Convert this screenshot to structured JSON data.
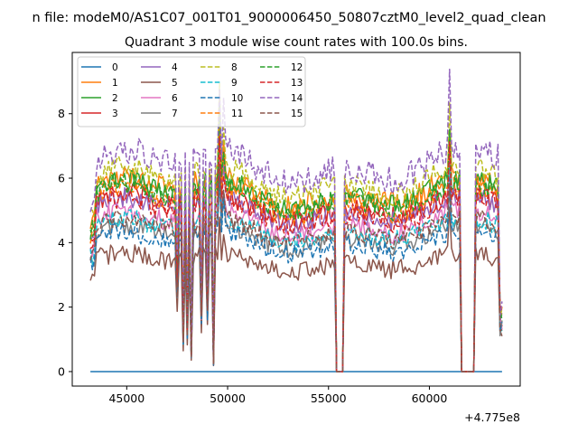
{
  "figure": {
    "suptitle": "n file: modeM0/AS1C07_001T01_9000006450_50807cztM0_level2_quad_clean"
  },
  "chart_data": {
    "type": "line",
    "title": "Quadrant 3 module wise count rates with 100.0s bins.",
    "xlabel": "",
    "ylabel": "",
    "x_offset_label": "+4.775e8",
    "xlim": [
      42300,
      64500
    ],
    "ylim": [
      -0.45,
      9.9
    ],
    "xticks": [
      45000,
      50000,
      55000,
      60000
    ],
    "xtick_labels": [
      "45000",
      "50000",
      "55000",
      "60000"
    ],
    "yticks": [
      0,
      2,
      4,
      6,
      8
    ],
    "ytick_labels": [
      "0",
      "2",
      "4",
      "6",
      "8"
    ],
    "grid": false,
    "legend_placement": "top-left",
    "legend_columns": 4,
    "x_range": [
      43200,
      63600
    ],
    "x_step": 100,
    "gaps": [
      {
        "from": 55400,
        "to": 55700
      },
      {
        "from": 61600,
        "to": 62200
      }
    ],
    "dips": [
      {
        "center": 47500,
        "depth": 0.45
      },
      {
        "center": 47800,
        "depth": 0.8
      },
      {
        "center": 48000,
        "depth": 0.75
      },
      {
        "center": 48200,
        "depth": 0.9
      },
      {
        "center": 48700,
        "depth": 0.65
      },
      {
        "center": 49000,
        "depth": 0.6
      },
      {
        "center": 49300,
        "depth": 0.95
      }
    ],
    "spikes": [
      {
        "center": 49600,
        "factor": 1.35
      },
      {
        "center": 49800,
        "factor": 1.2
      },
      {
        "center": 61000,
        "factor": 1.3
      }
    ],
    "series": [
      {
        "name": "0",
        "level": 0.0,
        "color": "#1f77b4",
        "dash": "solid",
        "amp": 0.0
      },
      {
        "name": "1",
        "level": 5.6,
        "color": "#ff7f0e",
        "dash": "solid",
        "amp": 0.35
      },
      {
        "name": "2",
        "level": 5.5,
        "color": "#2ca02c",
        "dash": "solid",
        "amp": 0.35
      },
      {
        "name": "3",
        "level": 5.1,
        "color": "#d62728",
        "dash": "solid",
        "amp": 0.35
      },
      {
        "name": "4",
        "level": 5.0,
        "color": "#9467bd",
        "dash": "solid",
        "amp": 0.3
      },
      {
        "name": "5",
        "level": 3.4,
        "color": "#8c564b",
        "dash": "solid",
        "amp": 0.3
      },
      {
        "name": "6",
        "level": 4.6,
        "color": "#e377c2",
        "dash": "solid",
        "amp": 0.3
      },
      {
        "name": "7",
        "level": 4.2,
        "color": "#7f7f7f",
        "dash": "solid",
        "amp": 0.3
      },
      {
        "name": "8",
        "level": 5.9,
        "color": "#bcbd22",
        "dash": "dashed",
        "amp": 0.35
      },
      {
        "name": "9",
        "level": 4.4,
        "color": "#17becf",
        "dash": "dashed",
        "amp": 0.3
      },
      {
        "name": "10",
        "level": 4.0,
        "color": "#1f77b4",
        "dash": "dashed",
        "amp": 0.3
      },
      {
        "name": "11",
        "level": 5.3,
        "color": "#ff7f0e",
        "dash": "dashed",
        "amp": 0.35
      },
      {
        "name": "12",
        "level": 5.4,
        "color": "#2ca02c",
        "dash": "dashed",
        "amp": 0.35
      },
      {
        "name": "13",
        "level": 5.0,
        "color": "#d62728",
        "dash": "dashed",
        "amp": 0.35
      },
      {
        "name": "14",
        "level": 6.4,
        "color": "#9467bd",
        "dash": "dashed",
        "amp": 0.45
      },
      {
        "name": "15",
        "level": 4.4,
        "color": "#8c564b",
        "dash": "dashed",
        "amp": 0.3
      }
    ]
  }
}
